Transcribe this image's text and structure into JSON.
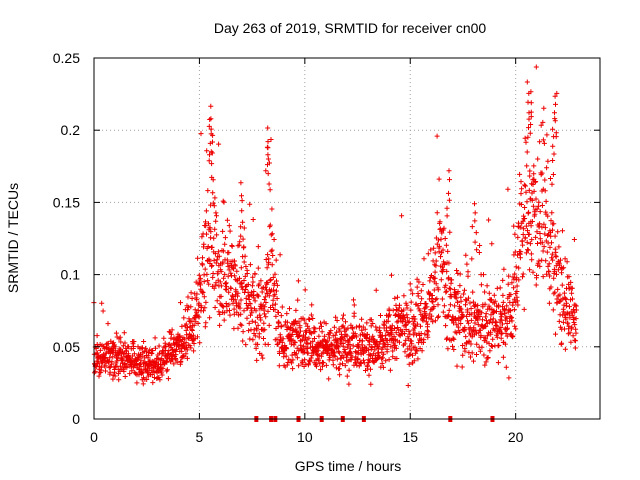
{
  "chart_data": {
    "type": "scatter",
    "title": "Day 263 of 2019, SRMTID for receiver cn00",
    "xlabel": "GPS time / hours",
    "ylabel": "SRMTID / TECUs",
    "xlim": [
      0,
      24
    ],
    "ylim": [
      0,
      0.25
    ],
    "x_ticks": [
      0,
      5,
      10,
      15,
      20
    ],
    "x_tick_labels": [
      "0",
      "5",
      "10",
      "15",
      "20"
    ],
    "y_ticks": [
      0,
      0.05,
      0.1,
      0.15,
      0.2,
      0.25
    ],
    "y_tick_labels": [
      "0",
      "0.05",
      "0.1",
      "0.15",
      "0.2",
      "0.25"
    ],
    "grid": true,
    "marker": "plus",
    "marker_color": "#ee0000",
    "series": [
      {
        "name": "SRMTID",
        "profile_note": "approximate envelope read from the plot: [hour, typical value, spread]",
        "profile": [
          [
            0.0,
            0.042,
            0.012
          ],
          [
            1.0,
            0.044,
            0.012
          ],
          [
            2.0,
            0.04,
            0.011
          ],
          [
            3.0,
            0.038,
            0.012
          ],
          [
            4.0,
            0.05,
            0.013
          ],
          [
            4.8,
            0.068,
            0.018
          ],
          [
            5.3,
            0.11,
            0.04
          ],
          [
            5.6,
            0.12,
            0.045
          ],
          [
            6.0,
            0.095,
            0.03
          ],
          [
            6.5,
            0.1,
            0.035
          ],
          [
            7.0,
            0.09,
            0.03
          ],
          [
            7.6,
            0.08,
            0.03
          ],
          [
            8.0,
            0.07,
            0.03
          ],
          [
            8.4,
            0.11,
            0.045
          ],
          [
            8.8,
            0.055,
            0.02
          ],
          [
            9.5,
            0.055,
            0.018
          ],
          [
            10.5,
            0.052,
            0.016
          ],
          [
            11.5,
            0.05,
            0.016
          ],
          [
            12.5,
            0.055,
            0.018
          ],
          [
            13.5,
            0.048,
            0.016
          ],
          [
            14.5,
            0.065,
            0.02
          ],
          [
            15.0,
            0.06,
            0.022
          ],
          [
            15.8,
            0.07,
            0.025
          ],
          [
            16.4,
            0.11,
            0.035
          ],
          [
            17.0,
            0.075,
            0.03
          ],
          [
            18.0,
            0.065,
            0.025
          ],
          [
            19.0,
            0.065,
            0.025
          ],
          [
            19.8,
            0.075,
            0.03
          ],
          [
            20.3,
            0.135,
            0.045
          ],
          [
            20.8,
            0.14,
            0.05
          ],
          [
            21.3,
            0.15,
            0.045
          ],
          [
            21.8,
            0.11,
            0.04
          ],
          [
            22.3,
            0.075,
            0.025
          ],
          [
            22.8,
            0.07,
            0.02
          ]
        ],
        "peaks": [
          [
            5.5,
            0.217
          ],
          [
            5.6,
            0.21
          ],
          [
            8.2,
            0.202
          ],
          [
            8.3,
            0.19
          ],
          [
            20.6,
            0.234
          ],
          [
            20.7,
            0.228
          ],
          [
            21.9,
            0.226
          ],
          [
            21.8,
            0.21
          ],
          [
            16.8,
            0.172
          ],
          [
            18.1,
            0.15
          ],
          [
            7.0,
            0.164
          ]
        ],
        "x_range": [
          0.0,
          22.9
        ]
      }
    ],
    "baseline_markers": {
      "y": 0,
      "x": [
        7.7,
        8.4,
        8.6,
        9.7,
        10.8,
        11.8,
        12.8,
        16.9,
        18.9
      ],
      "color": "#e00000"
    }
  }
}
